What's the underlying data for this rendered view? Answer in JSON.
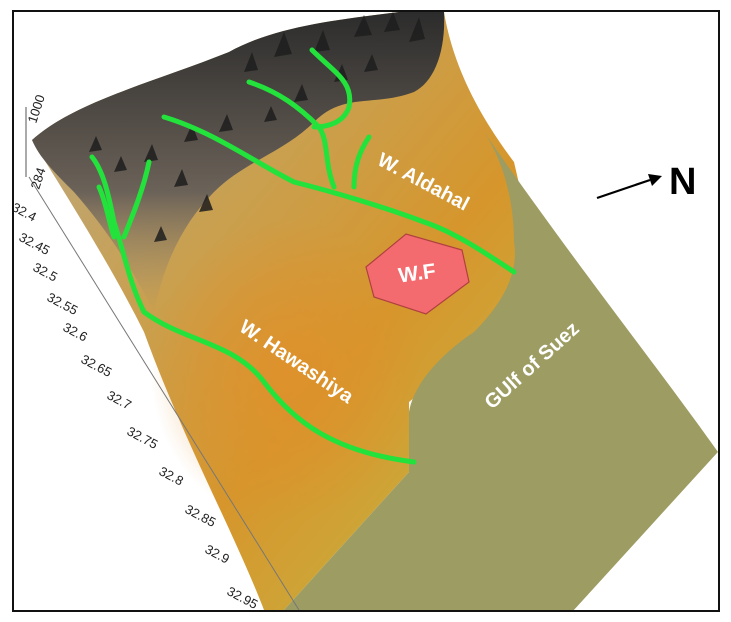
{
  "map": {
    "north_label": "N",
    "wf_label": "W.F",
    "labels": {
      "aldahal": "W. Aldahal",
      "hawashiya": "W. Hawashiya",
      "gulf": "GUlf of Suez"
    },
    "axis": {
      "elevation_ticks": [
        "1000",
        "284"
      ],
      "ticks": [
        "32.4",
        "32.45",
        "32.5",
        "32.55",
        "32.6",
        "32.65",
        "32.7",
        "32.75",
        "32.8",
        "32.85",
        "32.9",
        "32.95"
      ]
    },
    "colors": {
      "wadi": "#22e23b",
      "wf_box": "#f36b6e",
      "sea": "#9c9c63",
      "land": "#d39a33"
    }
  }
}
